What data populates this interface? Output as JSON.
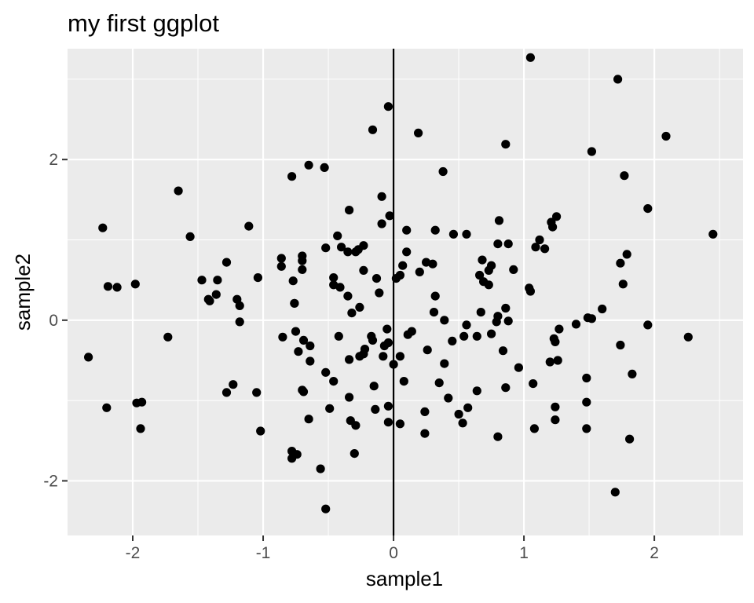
{
  "chart_data": {
    "type": "scatter",
    "title": "my first ggplot",
    "xlabel": "sample1",
    "ylabel": "sample2",
    "xlim": [
      -2.5,
      2.68
    ],
    "ylim": [
      -2.68,
      3.38
    ],
    "x_ticks": [
      {
        "value": -2,
        "label": "-2"
      },
      {
        "value": -1,
        "label": "-1"
      },
      {
        "value": 0,
        "label": "0"
      },
      {
        "value": 1,
        "label": "1"
      },
      {
        "value": 2,
        "label": "2"
      }
    ],
    "y_ticks": [
      {
        "value": -2,
        "label": "-2"
      },
      {
        "value": 0,
        "label": "0"
      },
      {
        "value": 2,
        "label": "2"
      }
    ],
    "grid": true,
    "vline": 0,
    "colors": {
      "panel": "#EBEBEB",
      "grid": "#FFFFFF",
      "point": "#000000",
      "vline": "#000000"
    },
    "points": [
      [
        -2.34,
        -0.46
      ],
      [
        -2.23,
        1.15
      ],
      [
        -2.2,
        -1.09
      ],
      [
        -2.19,
        0.42
      ],
      [
        -2.12,
        0.41
      ],
      [
        -1.98,
        0.45
      ],
      [
        -1.97,
        -1.03
      ],
      [
        -1.93,
        -1.02
      ],
      [
        -1.94,
        -1.35
      ],
      [
        -1.73,
        -0.21
      ],
      [
        -1.65,
        1.61
      ],
      [
        -1.56,
        1.04
      ],
      [
        -1.47,
        0.5
      ],
      [
        -1.42,
        0.26
      ],
      [
        -1.41,
        0.24
      ],
      [
        -1.36,
        0.32
      ],
      [
        -1.35,
        0.5
      ],
      [
        -1.28,
        0.72
      ],
      [
        -1.28,
        -0.9
      ],
      [
        -1.23,
        -0.8
      ],
      [
        -1.2,
        0.26
      ],
      [
        -1.18,
        0.18
      ],
      [
        -1.18,
        -0.02
      ],
      [
        -1.11,
        1.17
      ],
      [
        -1.05,
        -0.9
      ],
      [
        -1.04,
        0.53
      ],
      [
        -1.02,
        -1.38
      ],
      [
        -0.86,
        0.77
      ],
      [
        -0.86,
        0.67
      ],
      [
        -0.85,
        -0.21
      ],
      [
        -0.78,
        1.79
      ],
      [
        -0.78,
        -1.63
      ],
      [
        -0.78,
        -1.72
      ],
      [
        -0.77,
        0.49
      ],
      [
        -0.76,
        0.21
      ],
      [
        -0.76,
        0.21
      ],
      [
        -0.75,
        -0.14
      ],
      [
        -0.73,
        -0.39
      ],
      [
        -0.74,
        -1.67
      ],
      [
        -0.7,
        0.8
      ],
      [
        -0.7,
        0.74
      ],
      [
        -0.7,
        0.63
      ],
      [
        -0.69,
        -0.25
      ],
      [
        -0.7,
        -0.87
      ],
      [
        -0.69,
        -0.89
      ],
      [
        -0.65,
        1.93
      ],
      [
        -0.64,
        -0.32
      ],
      [
        -0.64,
        -0.51
      ],
      [
        -0.65,
        -1.23
      ],
      [
        -0.56,
        -1.85
      ],
      [
        -0.53,
        1.9
      ],
      [
        -0.52,
        0.9
      ],
      [
        -0.52,
        -0.65
      ],
      [
        -0.52,
        -2.35
      ],
      [
        -0.49,
        -1.1
      ],
      [
        -0.46,
        0.53
      ],
      [
        -0.46,
        0.44
      ],
      [
        -0.46,
        -0.76
      ],
      [
        -0.43,
        1.05
      ],
      [
        -0.42,
        -0.2
      ],
      [
        -0.4,
        0.91
      ],
      [
        -0.41,
        0.41
      ],
      [
        -0.35,
        0.85
      ],
      [
        -0.34,
        1.37
      ],
      [
        -0.35,
        0.3
      ],
      [
        -0.34,
        -0.49
      ],
      [
        -0.34,
        -0.96
      ],
      [
        -0.33,
        -1.25
      ],
      [
        -0.32,
        0.09
      ],
      [
        -0.3,
        -1.66
      ],
      [
        -0.29,
        0.85
      ],
      [
        -0.29,
        -1.31
      ],
      [
        -0.27,
        0.88
      ],
      [
        -0.26,
        -0.45
      ],
      [
        -0.26,
        0.16
      ],
      [
        -0.23,
        0.62
      ],
      [
        -0.23,
        0.93
      ],
      [
        -0.23,
        -0.42
      ],
      [
        -0.22,
        -0.36
      ],
      [
        -0.16,
        2.37
      ],
      [
        -0.17,
        -0.2
      ],
      [
        -0.16,
        -0.25
      ],
      [
        -0.15,
        -0.82
      ],
      [
        -0.14,
        -1.11
      ],
      [
        -0.13,
        0.52
      ],
      [
        -0.11,
        0.34
      ],
      [
        -0.09,
        1.54
      ],
      [
        -0.09,
        1.2
      ],
      [
        -0.08,
        -0.45
      ],
      [
        -0.07,
        -0.32
      ],
      [
        -0.05,
        -0.11
      ],
      [
        -0.04,
        2.66
      ],
      [
        -0.03,
        1.3
      ],
      [
        -0.04,
        -0.28
      ],
      [
        -0.04,
        -1.07
      ],
      [
        -0.04,
        -1.27
      ],
      [
        0.0,
        -0.55
      ],
      [
        0.02,
        0.52
      ],
      [
        0.05,
        0.56
      ],
      [
        0.05,
        -1.29
      ],
      [
        0.05,
        -0.45
      ],
      [
        0.07,
        0.68
      ],
      [
        0.08,
        -0.76
      ],
      [
        0.1,
        0.85
      ],
      [
        0.1,
        1.12
      ],
      [
        0.11,
        -0.18
      ],
      [
        0.14,
        -0.14
      ],
      [
        0.19,
        2.33
      ],
      [
        0.2,
        0.6
      ],
      [
        0.24,
        -1.14
      ],
      [
        0.24,
        -1.41
      ],
      [
        0.26,
        -0.37
      ],
      [
        0.25,
        0.72
      ],
      [
        0.3,
        0.7
      ],
      [
        0.31,
        0.1
      ],
      [
        0.32,
        1.12
      ],
      [
        0.32,
        0.3
      ],
      [
        0.35,
        -0.78
      ],
      [
        0.38,
        1.85
      ],
      [
        0.39,
        0.0
      ],
      [
        0.39,
        -0.54
      ],
      [
        0.42,
        -0.97
      ],
      [
        0.45,
        -0.26
      ],
      [
        0.46,
        1.07
      ],
      [
        0.5,
        -1.17
      ],
      [
        0.53,
        -1.28
      ],
      [
        0.54,
        -0.2
      ],
      [
        0.56,
        1.07
      ],
      [
        0.56,
        -0.06
      ],
      [
        0.57,
        -1.09
      ],
      [
        0.64,
        -0.2
      ],
      [
        0.64,
        -0.88
      ],
      [
        0.66,
        0.56
      ],
      [
        0.67,
        0.1
      ],
      [
        0.68,
        0.75
      ],
      [
        0.69,
        0.48
      ],
      [
        0.73,
        0.62
      ],
      [
        0.73,
        0.44
      ],
      [
        0.75,
        0.68
      ],
      [
        0.75,
        -0.17
      ],
      [
        0.79,
        -0.02
      ],
      [
        0.8,
        0.95
      ],
      [
        0.8,
        0.05
      ],
      [
        0.8,
        -1.45
      ],
      [
        0.81,
        1.24
      ],
      [
        0.84,
        -0.38
      ],
      [
        0.86,
        2.19
      ],
      [
        0.86,
        0.15
      ],
      [
        0.86,
        -0.84
      ],
      [
        0.88,
        0.95
      ],
      [
        0.88,
        -0.01
      ],
      [
        0.92,
        0.63
      ],
      [
        0.96,
        -0.59
      ],
      [
        1.05,
        3.27
      ],
      [
        1.04,
        0.4
      ],
      [
        1.05,
        0.36
      ],
      [
        1.07,
        -0.79
      ],
      [
        1.08,
        -1.35
      ],
      [
        1.09,
        0.91
      ],
      [
        1.12,
        1.0
      ],
      [
        1.16,
        0.89
      ],
      [
        1.2,
        -0.52
      ],
      [
        1.21,
        1.22
      ],
      [
        1.22,
        1.16
      ],
      [
        1.23,
        -0.23
      ],
      [
        1.24,
        -0.27
      ],
      [
        1.24,
        -1.08
      ],
      [
        1.24,
        -1.24
      ],
      [
        1.25,
        1.29
      ],
      [
        1.26,
        -0.5
      ],
      [
        1.27,
        -0.11
      ],
      [
        1.4,
        -0.05
      ],
      [
        1.48,
        -0.72
      ],
      [
        1.48,
        -1.02
      ],
      [
        1.48,
        -1.35
      ],
      [
        1.49,
        0.03
      ],
      [
        1.52,
        0.02
      ],
      [
        1.52,
        2.1
      ],
      [
        1.6,
        0.14
      ],
      [
        1.72,
        3.0
      ],
      [
        1.74,
        0.71
      ],
      [
        1.74,
        -0.31
      ],
      [
        1.76,
        0.45
      ],
      [
        1.77,
        1.8
      ],
      [
        1.79,
        0.82
      ],
      [
        1.81,
        -1.48
      ],
      [
        1.83,
        -0.67
      ],
      [
        1.95,
        1.39
      ],
      [
        1.95,
        -0.06
      ],
      [
        2.09,
        2.29
      ],
      [
        2.26,
        -0.21
      ],
      [
        2.45,
        1.07
      ],
      [
        1.7,
        -2.14
      ]
    ]
  }
}
